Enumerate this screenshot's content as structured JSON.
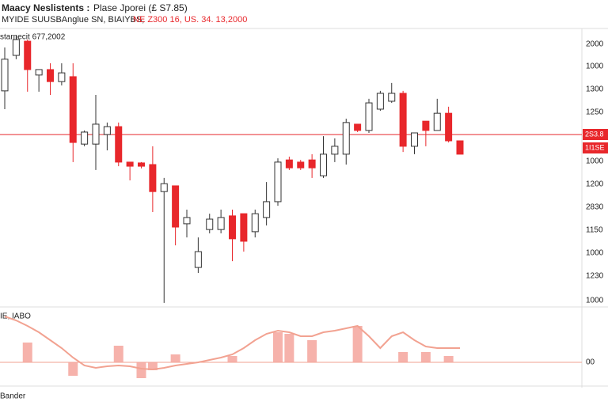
{
  "header": {
    "title": "Maacy Neslistents :",
    "subtitle": "Plase Jporei (£ S7.85)",
    "line2": "MYIDE SUUSBAnglue SN, BIAIYBS,",
    "line2_red": "NE Z300 16, US. 34. 13,2000"
  },
  "chart_data": {
    "type": "candlestick",
    "corner_label": "starnecit 677,2002",
    "ylim": [
      0,
      100
    ],
    "up_color": "#ffffff",
    "down_color": "#e8272b",
    "open": [
      78.3,
      91.3,
      96.5,
      84.1,
      86.1,
      81.7,
      83.5,
      58.8,
      58.8,
      62.3,
      65.2,
      52.2,
      51.9,
      51.3,
      41.4,
      43.5,
      29.6,
      13.6,
      27.5,
      27.5,
      32.5,
      33.3,
      26.7,
      31.9,
      37.7,
      53.0,
      52.2,
      53.0,
      47.2,
      55.1,
      55.1,
      66.1,
      63.8,
      71.6,
      74.5,
      77.4,
      58.0,
      67.2,
      63.8,
      70.1,
      60.0
    ],
    "high": [
      94.2,
      98.6,
      97.1,
      86.1,
      88.4,
      88.4,
      88.4,
      63.8,
      76.8,
      66.7,
      66.7,
      52.2,
      52.2,
      58.0,
      46.4,
      43.5,
      34.8,
      24.6,
      33.3,
      34.8,
      34.8,
      33.3,
      34.8,
      44.9,
      53.6,
      54.2,
      53.0,
      55.1,
      61.7,
      60.9,
      68.1,
      66.1,
      75.4,
      78.3,
      81.2,
      78.3,
      62.9,
      67.2,
      75.4,
      72.5,
      60.0
    ],
    "low": [
      71.6,
      89.9,
      78.0,
      78.0,
      76.8,
      80.3,
      52.2,
      58.0,
      49.3,
      56.5,
      50.7,
      45.5,
      49.9,
      33.9,
      0.6,
      21.7,
      24.6,
      11.6,
      26.1,
      26.1,
      15.9,
      19.4,
      24.6,
      29.0,
      36.2,
      49.3,
      49.3,
      46.4,
      46.4,
      52.2,
      51.3,
      63.2,
      62.9,
      71.0,
      73.9,
      55.9,
      55.1,
      58.0,
      63.8,
      59.4,
      55.1
    ],
    "close": [
      89.9,
      97.1,
      86.1,
      86.1,
      81.7,
      84.9,
      59.4,
      63.2,
      66.1,
      65.2,
      52.2,
      50.7,
      50.7,
      41.4,
      44.3,
      28.4,
      31.9,
      19.4,
      31.3,
      31.9,
      24.1,
      23.2,
      33.3,
      37.7,
      52.2,
      50.1,
      50.1,
      50.1,
      55.1,
      58.0,
      66.7,
      63.8,
      73.9,
      77.4,
      77.4,
      58.0,
      62.9,
      63.8,
      70.1,
      60.0,
      55.1
    ],
    "price_line": 62.3,
    "price_line_color": "#e8272b",
    "price_labels": [
      "2S3.8",
      "1I1SE"
    ],
    "axis_labels": [
      "2000",
      "1000",
      "1300",
      "1250",
      "1000",
      "1200",
      "2830",
      "1150",
      "1000",
      "1230",
      "1000"
    ],
    "indicator": {
      "label": "IE, IABO",
      "zero_label": "00",
      "ylim": [
        -30,
        75
      ],
      "bar_color": "#f4a49c",
      "bars": [
        null,
        null,
        25,
        null,
        null,
        null,
        -17,
        null,
        null,
        null,
        21,
        null,
        -20,
        -10,
        null,
        10,
        null,
        null,
        null,
        null,
        8,
        null,
        null,
        null,
        38,
        36,
        null,
        28,
        null,
        null,
        null,
        46,
        null,
        null,
        null,
        13,
        null,
        13,
        null,
        8,
        null
      ],
      "signal_color": "#f2a291",
      "signal": [
        58,
        53,
        46,
        38,
        28,
        18,
        6,
        -4,
        -7,
        -5,
        -4,
        -5,
        -8,
        -9,
        -7,
        -4,
        -2,
        0,
        3,
        6,
        10,
        18,
        28,
        36,
        40,
        38,
        33,
        33,
        38,
        40,
        43,
        46,
        33,
        18,
        33,
        38,
        28,
        20,
        18,
        18,
        18
      ]
    },
    "footer": "Bander"
  }
}
